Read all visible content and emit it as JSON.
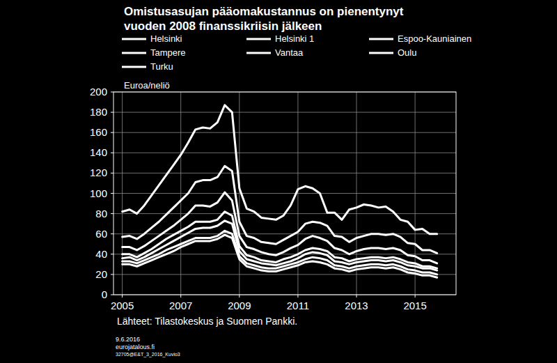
{
  "chart_data": {
    "type": "line",
    "title": "Omistusasujan pääomakustannus on pienentynyt\nvuoden 2008 finanssikriisin jälkeen",
    "y_label": "Euroa/neliö",
    "source": "Lähteet: Tilastokeskus ja Suomen Pankki.",
    "footer": [
      "9.6.2016",
      "eurojatalous.fi",
      "32705@E&T_3_2016_Kuvio3"
    ],
    "x": [
      2005,
      2005.25,
      2005.5,
      2005.75,
      2006,
      2006.25,
      2006.5,
      2006.75,
      2007,
      2007.25,
      2007.5,
      2007.75,
      2008,
      2008.25,
      2008.5,
      2008.75,
      2009,
      2009.25,
      2009.5,
      2009.75,
      2010,
      2010.25,
      2010.5,
      2010.75,
      2011,
      2011.25,
      2011.5,
      2011.75,
      2012,
      2012.25,
      2012.5,
      2012.75,
      2013,
      2013.25,
      2013.5,
      2013.75,
      2014,
      2014.25,
      2014.5,
      2014.75,
      2015,
      2015.25,
      2015.5,
      2015.75
    ],
    "xlim": [
      2004.7,
      2016.4
    ],
    "xticks": [
      2005,
      2007,
      2009,
      2011,
      2013,
      2015
    ],
    "ylim": [
      0,
      200
    ],
    "yticks": [
      0,
      20,
      40,
      60,
      80,
      100,
      120,
      140,
      160,
      180,
      200
    ],
    "grid": true,
    "legend": "top",
    "series": [
      {
        "name": "Helsinki",
        "color": "#ffffff",
        "values": [
          57,
          58,
          55,
          60,
          66,
          72,
          79,
          86,
          93,
          100,
          111,
          113,
          113,
          116,
          127,
          122,
          72,
          58,
          56,
          52,
          51,
          50,
          54,
          58,
          62,
          70,
          72,
          71,
          68,
          58,
          57,
          52,
          56,
          58,
          60,
          60,
          59,
          60,
          57,
          51,
          50,
          44,
          44,
          41
        ]
      },
      {
        "name": "Helsinki 1",
        "color": "#ffffff",
        "values": [
          82,
          84,
          80,
          88,
          98,
          108,
          118,
          128,
          138,
          150,
          163,
          165,
          164,
          170,
          187,
          180,
          105,
          85,
          82,
          76,
          75,
          74,
          78,
          88,
          104,
          107,
          105,
          100,
          81,
          81,
          74,
          84,
          86,
          89,
          88,
          86,
          87,
          82,
          74,
          72,
          64,
          65,
          60,
          60
        ]
      },
      {
        "name": "Espoo-Kauniainen",
        "color": "#ffffff",
        "values": [
          47,
          47,
          44,
          48,
          53,
          58,
          63,
          68,
          74,
          80,
          88,
          88,
          87,
          91,
          101,
          93,
          58,
          47,
          45,
          42,
          40,
          39,
          42,
          46,
          49,
          55,
          58,
          56,
          53,
          46,
          44,
          40,
          43,
          45,
          46,
          46,
          45,
          46,
          44,
          39,
          38,
          34,
          34,
          31
        ]
      },
      {
        "name": "Tampere",
        "color": "#ffffff",
        "values": [
          36,
          37,
          34,
          37,
          41,
          45,
          49,
          53,
          57,
          61,
          65,
          66,
          66,
          68,
          73,
          70,
          43,
          35,
          33,
          31,
          30,
          29,
          31,
          33,
          36,
          40,
          42,
          41,
          39,
          33,
          32,
          30,
          32,
          33,
          34,
          34,
          33,
          34,
          32,
          29,
          28,
          26,
          26,
          24
        ]
      },
      {
        "name": "Vantaa",
        "color": "#ffffff",
        "values": [
          40,
          40,
          37,
          41,
          45,
          50,
          55,
          59,
          63,
          67,
          72,
          72,
          72,
          74,
          82,
          78,
          48,
          39,
          37,
          34,
          33,
          32,
          35,
          37,
          40,
          44,
          46,
          45,
          43,
          37,
          36,
          33,
          35,
          36,
          37,
          37,
          36,
          37,
          35,
          32,
          31,
          28,
          28,
          26
        ]
      },
      {
        "name": "Oulu",
        "color": "#ffffff",
        "values": [
          30,
          30,
          28,
          31,
          34,
          37,
          40,
          43,
          47,
          50,
          53,
          53,
          53,
          55,
          59,
          56,
          35,
          28,
          26,
          24,
          23,
          23,
          25,
          27,
          29,
          32,
          33,
          32,
          30,
          26,
          25,
          23,
          25,
          26,
          27,
          27,
          26,
          27,
          25,
          22,
          21,
          19,
          19,
          17
        ]
      },
      {
        "name": "Turku",
        "color": "#ffffff",
        "values": [
          33,
          33,
          31,
          34,
          37,
          40,
          44,
          47,
          50,
          53,
          56,
          56,
          56,
          58,
          63,
          60,
          38,
          31,
          29,
          27,
          26,
          26,
          28,
          30,
          32,
          35,
          37,
          36,
          34,
          29,
          28,
          26,
          28,
          29,
          30,
          30,
          29,
          30,
          28,
          25,
          24,
          22,
          22,
          20
        ]
      }
    ]
  }
}
